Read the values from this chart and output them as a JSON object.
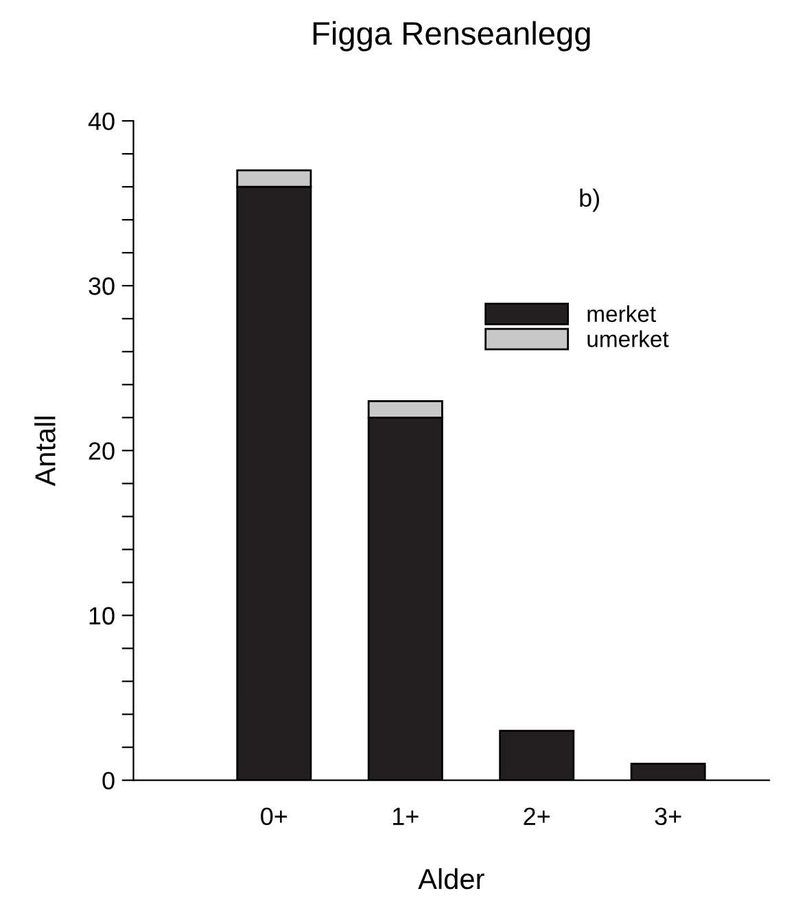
{
  "chart_data": {
    "type": "bar",
    "title": "Figga Renseanlegg",
    "xlabel": "Alder",
    "ylabel": "Antall",
    "categories": [
      "0+",
      "1+",
      "2+",
      "3+"
    ],
    "stacked": true,
    "series": [
      {
        "name": "merket",
        "color": "#231f20",
        "values": [
          36,
          22,
          3,
          1
        ]
      },
      {
        "name": "umerket",
        "color": "#c8c8c8",
        "values": [
          1,
          1,
          0,
          0
        ]
      }
    ],
    "ylim": [
      0,
      40
    ],
    "yticks": [
      0,
      {
        "value": 2,
        "label": null
      },
      {
        "value": 4,
        "label": null
      },
      {
        "value": 6,
        "label": null
      },
      {
        "value": 8,
        "label": null
      },
      10,
      {
        "value": 12,
        "label": null
      },
      {
        "value": 14,
        "label": null
      },
      {
        "value": 16,
        "label": null
      },
      {
        "value": 18,
        "label": null
      },
      20,
      {
        "value": 22,
        "label": null
      },
      {
        "value": 24,
        "label": null
      },
      {
        "value": 26,
        "label": null
      },
      {
        "value": 28,
        "label": null
      },
      30,
      {
        "value": 32,
        "label": null
      },
      {
        "value": 34,
        "label": null
      },
      {
        "value": 36,
        "label": null
      },
      {
        "value": 38,
        "label": null
      },
      40
    ],
    "annotations": [
      "b)"
    ],
    "legend": "top right",
    "grid": false
  }
}
